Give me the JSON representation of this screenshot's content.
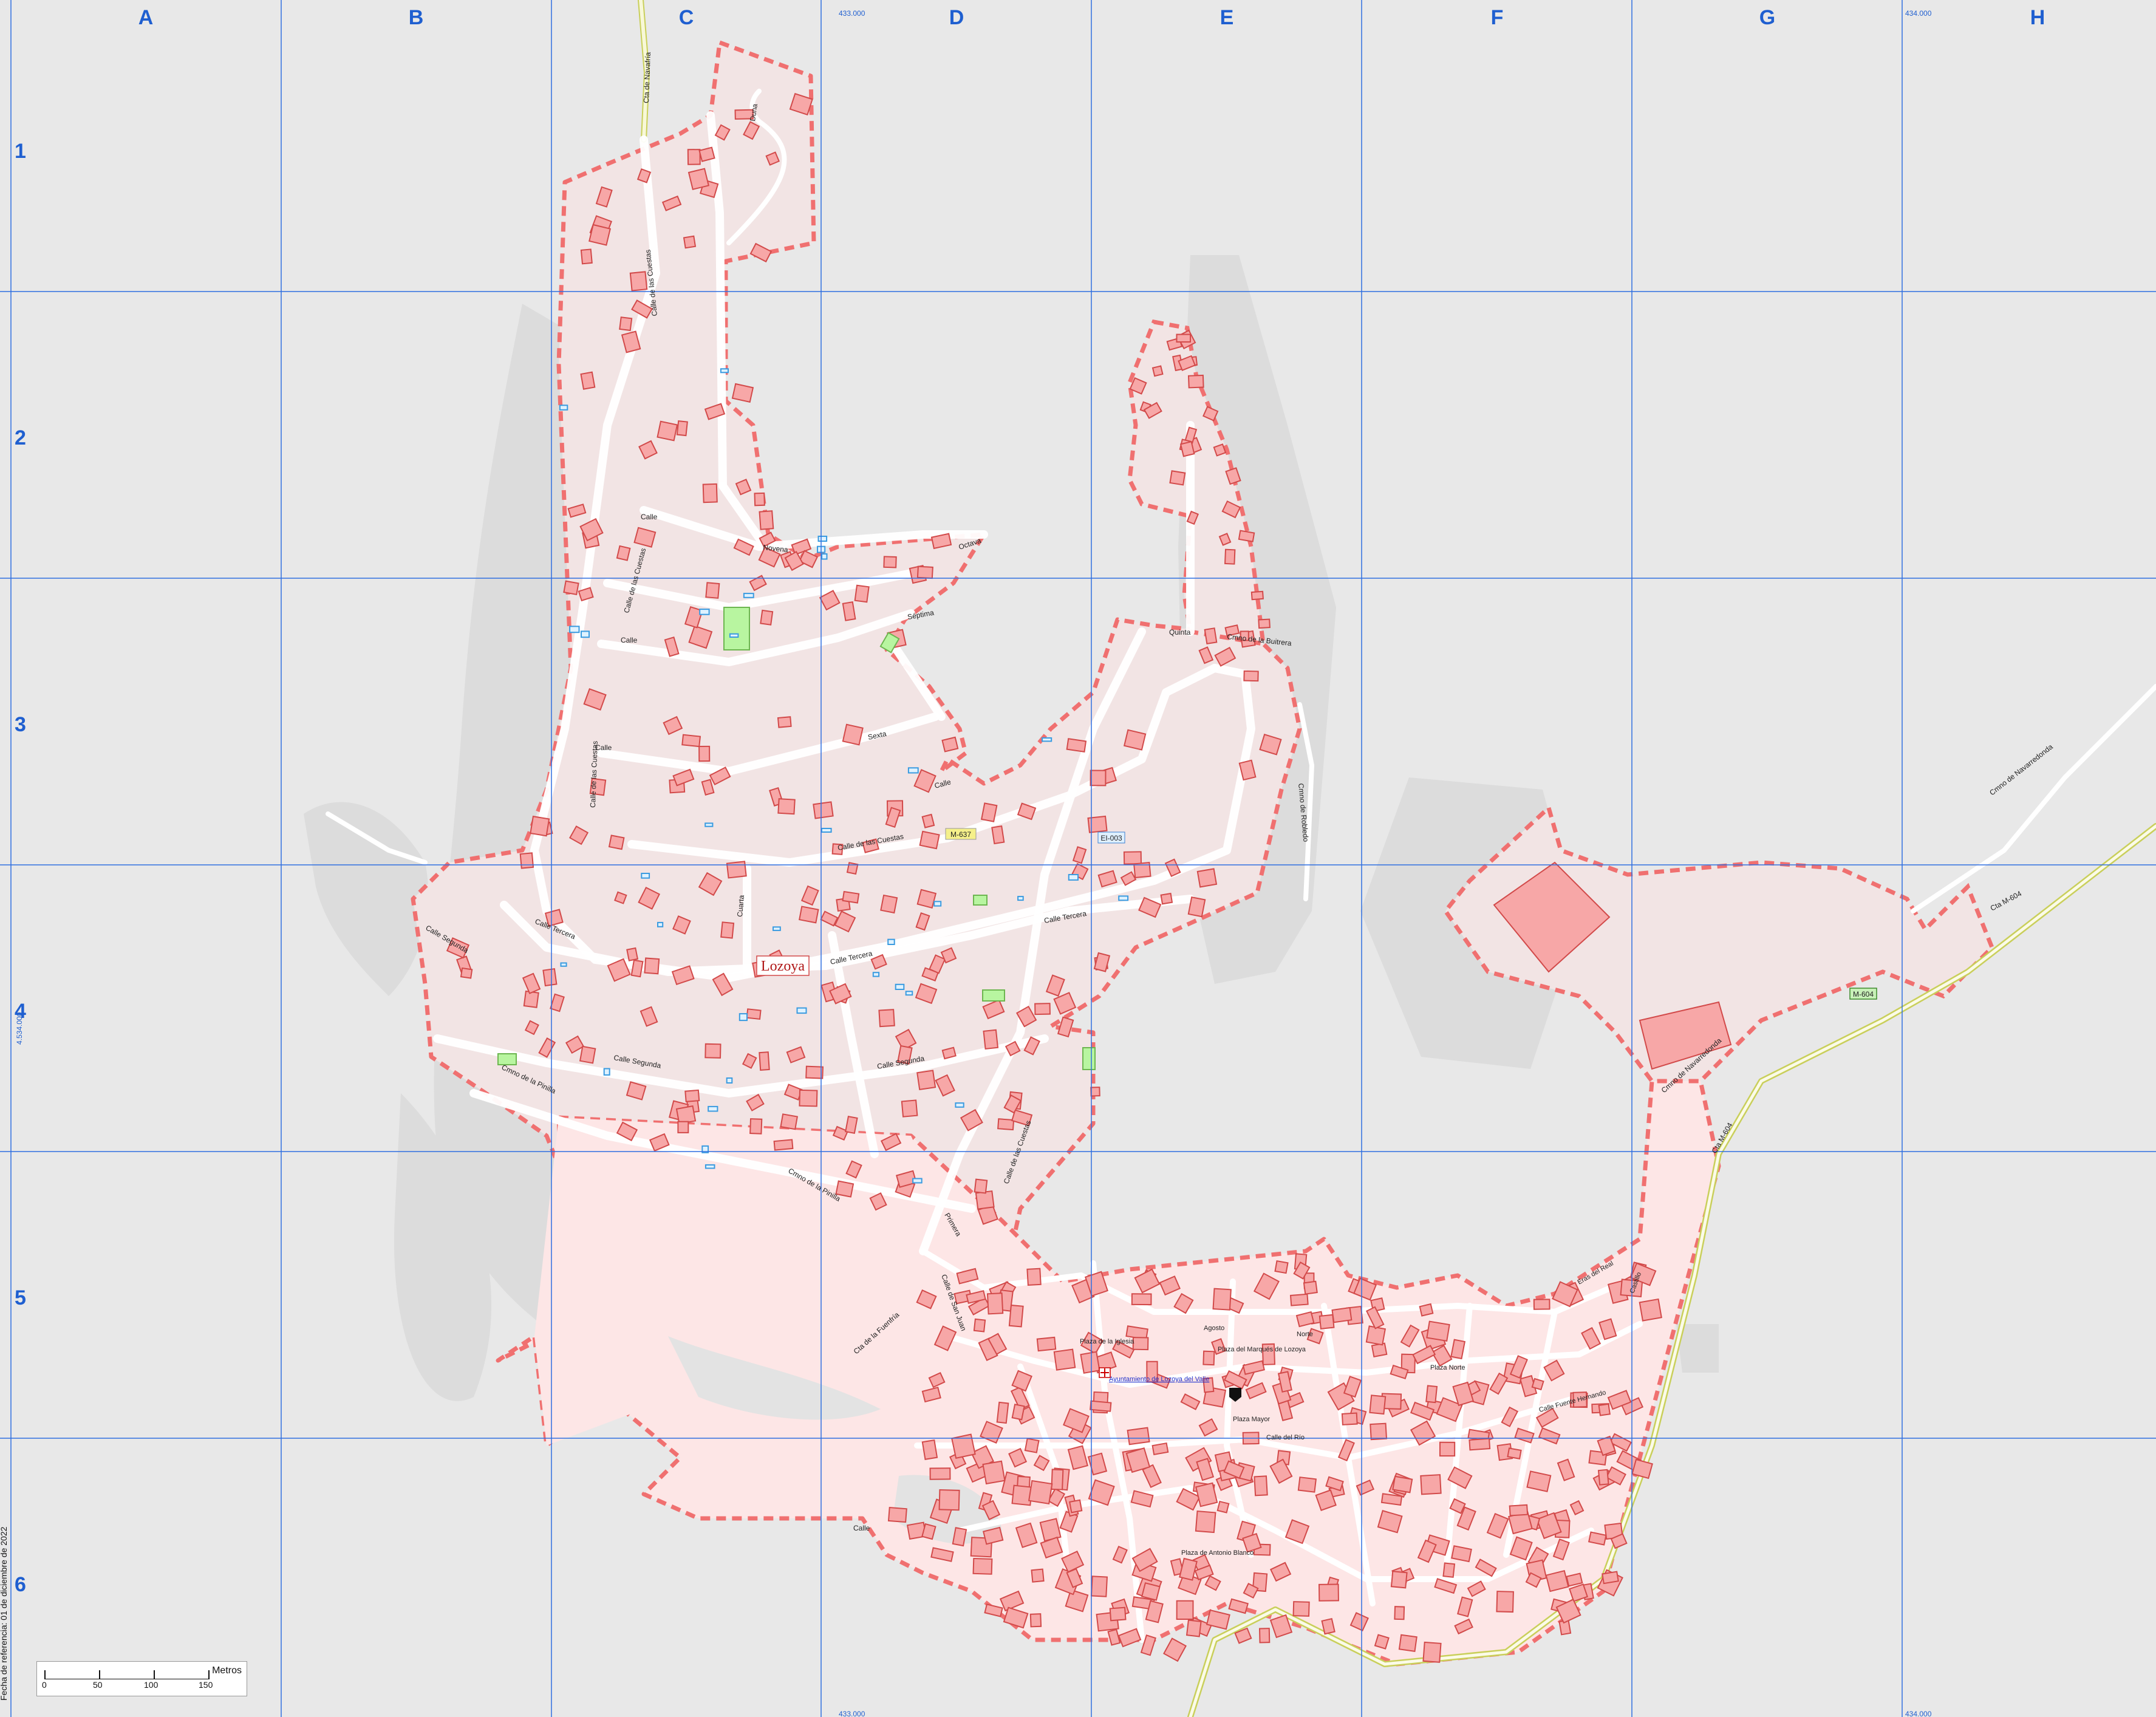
{
  "map": {
    "title": "Lozoya",
    "grid": {
      "columns": [
        "A",
        "B",
        "C",
        "D",
        "E",
        "F",
        "G",
        "H"
      ],
      "rows": [
        "1",
        "2",
        "3",
        "4",
        "5",
        "6"
      ],
      "top_coords": [
        "433.000",
        "434.000"
      ],
      "bottom_coords": [
        "433.000",
        "434.000"
      ],
      "left_coord": "4.534.000"
    },
    "colors": {
      "background": "#e8e8e8",
      "urban_zone": "#fde6e6",
      "boundary": "#f07070",
      "building_fill": "#f7a7a7",
      "building_stroke": "#d24a4a",
      "grid": "#2f6fe0",
      "road": "#fafafa",
      "green": "#b8f5a0",
      "pool": "#8fd0ff"
    },
    "road_shields": [
      {
        "label": "M-637",
        "color": "#f5f08a"
      },
      {
        "label": "EI-003",
        "color": "#dff0ff"
      },
      {
        "label": "M-604",
        "color": "#c8f0b8"
      }
    ],
    "street_labels": {
      "cta_navafria": "Cta de Navafría",
      "duna": "Duna",
      "calle_cuestas_1": "Calle de las Cuestas",
      "calle_cuestas_2": "Calle de las Cuestas",
      "calle_cuestas_3": "Calle de las Cuestas",
      "calle_cuestas_4": "Calle de las Cuestas",
      "calle_cuestas_5": "Calle de las Cuestas",
      "calle_1": "Calle",
      "calle_2": "Calle",
      "calle_3": "Calle",
      "calle_4": "Calle",
      "calle_5": "Calle",
      "novena": "Novena",
      "octava": "Octava",
      "septima": "Séptima",
      "sexta": "Sexta",
      "quinta": "Quinta",
      "cuarta": "Cuarta",
      "calle_tercera_1": "Calle Tercera",
      "calle_tercera_2": "Calle Tercera",
      "calle_tercera_3": "Calle Tercera",
      "calle_segunda_1": "Calle Segunda",
      "calle_segunda_2": "Calle Segunda",
      "calle_segunda_3": "Calle Segunda",
      "primera": "Primera",
      "cmno_pinilla_1": "Cmno de la Pinilla",
      "cmno_pinilla_2": "Cmno de la Pinilla",
      "cmno_buitrera": "Cmno de la Buitrera",
      "cmno_robledo": "Cmno de Robledo",
      "cmno_navarredonda_1": "Cmno de Navarredonda",
      "cmno_navarredonda_2": "Cmno de Navarredonda",
      "cta_m604_1": "Cta M-604",
      "cta_m604_2": "Cta M-604",
      "cta_fuenfria": "Cta de la Fuenfría",
      "calle_san_juan": "Calle de San Juan",
      "plaza_iglesia": "Plaza de la Iglesia",
      "plaza_mayor": "Plaza Mayor",
      "plaza_antonio_blanco": "Plaza de Antonio Blanco",
      "plaza_norte": "Plaza Norte",
      "plaza_marques": "Plaza del Marqués de Lozoya",
      "ayuntamiento": "Ayuntamiento de Lozoya del Valle",
      "calle_fuente_hernando": "Calle Fuente Hernando",
      "eras_del_real": "Eras del Real",
      "agosto": "Agosto",
      "norte": "Norte",
      "calle_rio": "Calle del Río",
      "castillo": "Castillo"
    }
  },
  "scale": {
    "units": "Metros",
    "ticks": [
      "0",
      "50",
      "100",
      "150"
    ]
  },
  "side_note": "Fecha de referencia: 01 de diciembre de 2022"
}
